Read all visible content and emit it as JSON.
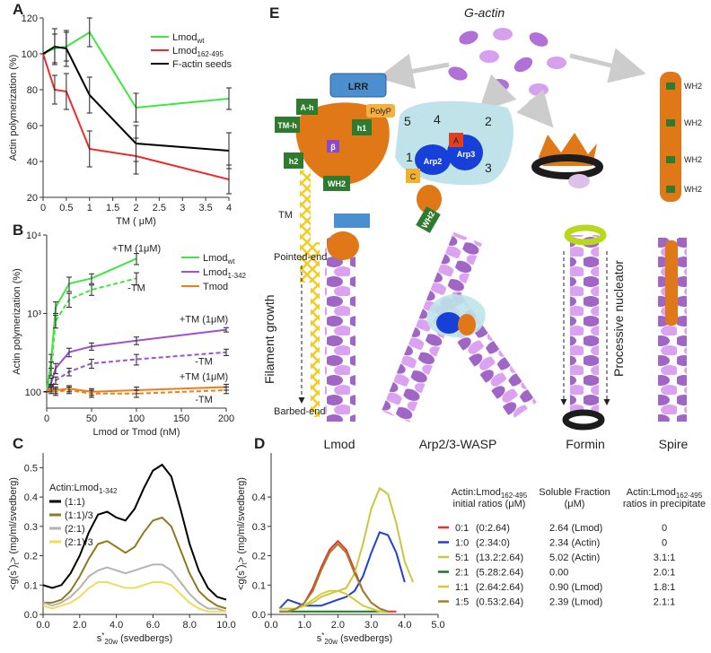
{
  "chart_data": [
    {
      "type": "line",
      "panel": "A",
      "xlabel": "TM ( μM)",
      "ylabel": "Actin polymerization (%)",
      "x": [
        0,
        0.25,
        0.5,
        1,
        2,
        4
      ],
      "xlim": [
        0,
        4
      ],
      "ylim": [
        20,
        120
      ],
      "xticks": [
        0,
        0.5,
        1,
        1.5,
        2,
        2.5,
        3,
        3.5,
        4
      ],
      "yticks": [
        20,
        40,
        60,
        80,
        100,
        120
      ],
      "series": [
        {
          "name": [
            "Lmod",
            {
              "sub": "wt"
            }
          ],
          "color": "#3ee63e",
          "values": [
            100,
            103,
            104,
            112,
            70,
            75
          ],
          "errors": [
            0,
            8,
            8,
            8,
            8,
            6
          ]
        },
        {
          "name": [
            "Lmod",
            {
              "sub": "162-495"
            }
          ],
          "color": "#ee2b2b",
          "values": [
            100,
            80,
            79,
            47,
            43,
            30
          ],
          "errors": [
            0,
            8,
            10,
            10,
            10,
            8
          ]
        },
        {
          "name": "F-actin seeds",
          "color": "#000000",
          "values": [
            100,
            104,
            103,
            77,
            50,
            46
          ],
          "errors": [
            0,
            10,
            10,
            10,
            10,
            10
          ]
        }
      ]
    },
    {
      "type": "line",
      "panel": "B",
      "xlabel": "Lmod or Tmod (nM)",
      "ylabel": "Actin polymerization (%)",
      "log_y": true,
      "x": [
        0,
        5,
        10,
        25,
        50,
        100,
        200
      ],
      "xlim": [
        0,
        200
      ],
      "ylim": [
        62,
        10000
      ],
      "xticks": [
        0,
        50,
        100,
        150,
        200
      ],
      "yticks": [
        100,
        {
          "value": 1000,
          "label": "10³"
        },
        {
          "value": 10000,
          "label": "10⁴"
        }
      ],
      "legend": [
        {
          "name": [
            "Lmod",
            {
              "sub": "wt"
            }
          ],
          "color": "#3ee63e"
        },
        {
          "name": [
            "Lmod",
            {
              "sub": "1-342"
            }
          ],
          "color": "#a050d0"
        },
        {
          "name": "Tmod",
          "color": "#f07d1a"
        }
      ],
      "series": [
        {
          "name": "+TM (1μM)",
          "color": "#3ee63e",
          "dashed": false,
          "values": [
            100,
            250,
            1200,
            2400,
            2800,
            5000,
            null
          ],
          "errors": [
            0,
            50,
            200,
            500,
            400,
            800,
            null
          ]
        },
        {
          "name": "-TM",
          "color": "#3ee63e",
          "dashed": true,
          "values": [
            100,
            200,
            800,
            1500,
            2000,
            2800,
            null
          ],
          "errors": [
            0,
            40,
            150,
            300,
            300,
            500,
            null
          ]
        },
        {
          "name": "+TM (1μM)",
          "color": "#a050d0",
          "dashed": false,
          "values": [
            100,
            130,
            200,
            320,
            380,
            450,
            620
          ],
          "errors": [
            0,
            20,
            30,
            40,
            40,
            50,
            40
          ]
        },
        {
          "name": "-TM",
          "color": "#a050d0",
          "dashed": true,
          "values": [
            100,
            110,
            140,
            180,
            230,
            260,
            320
          ],
          "errors": [
            0,
            10,
            15,
            20,
            30,
            40,
            30
          ]
        },
        {
          "name": "+TM (1μM)",
          "color": "#f07d1a",
          "dashed": false,
          "values": [
            100,
            115,
            105,
            110,
            100,
            105,
            115
          ],
          "errors": [
            0,
            10,
            10,
            10,
            10,
            10,
            10
          ]
        },
        {
          "name": "-TM",
          "color": "#f07d1a",
          "dashed": true,
          "values": [
            100,
            105,
            100,
            105,
            95,
            95,
            105
          ],
          "errors": [
            0,
            10,
            10,
            10,
            10,
            10,
            10
          ]
        }
      ]
    },
    {
      "type": "line",
      "panel": "C",
      "xlabel": [
        "s",
        {
          "sup": "*"
        },
        {
          "sub": "20w"
        },
        " (svedbergs)"
      ],
      "ylabel": [
        "<g(s",
        {
          "sup": "*"
        },
        ")",
        {
          "sub": "t"
        },
        "> (mg/ml/svedberg)"
      ],
      "legend_title": [
        "Actin:Lmod",
        {
          "sub": "1-342"
        }
      ],
      "x": [
        0,
        0.5,
        1,
        1.5,
        2,
        2.5,
        3,
        3.5,
        4,
        4.5,
        5,
        5.5,
        6,
        6.5,
        7,
        7.5,
        8,
        8.5,
        9,
        9.5,
        10
      ],
      "xlim": [
        0,
        10
      ],
      "ylim": [
        0,
        0.55
      ],
      "xticks": [
        {
          "value": 0,
          "label": "0.0"
        },
        {
          "value": 2,
          "label": "2.0"
        },
        {
          "value": 4,
          "label": "4.0"
        },
        {
          "value": 6,
          "label": "6.0"
        },
        {
          "value": 8,
          "label": "8.0"
        },
        {
          "value": 10,
          "label": "10.0"
        }
      ],
      "yticks": [
        {
          "value": 0,
          "label": "0.0"
        },
        0.1,
        0.2,
        0.3,
        0.4,
        0.5
      ],
      "series": [
        {
          "name": "(1:1)",
          "color": "#000000",
          "values": [
            0.1,
            0.09,
            0.1,
            0.14,
            0.2,
            0.28,
            0.34,
            0.35,
            0.33,
            0.32,
            0.36,
            0.43,
            0.49,
            0.51,
            0.47,
            0.36,
            0.24,
            0.15,
            0.09,
            0.06,
            0.05
          ]
        },
        {
          "name": "(1:1)/3",
          "color": "#8c7a1e",
          "values": [
            0.04,
            0.04,
            0.05,
            0.08,
            0.13,
            0.19,
            0.24,
            0.25,
            0.23,
            0.21,
            0.23,
            0.28,
            0.32,
            0.33,
            0.3,
            0.22,
            0.14,
            0.08,
            0.05,
            0.03,
            0.02
          ]
        },
        {
          "name": "(2:1)",
          "color": "#b3b3b3",
          "values": [
            0.04,
            0.03,
            0.04,
            0.06,
            0.09,
            0.13,
            0.15,
            0.16,
            0.15,
            0.14,
            0.15,
            0.16,
            0.17,
            0.17,
            0.15,
            0.11,
            0.07,
            0.04,
            0.02,
            0.02,
            0.01
          ]
        },
        {
          "name": "(2:1)/3",
          "color": "#f0dc5a",
          "values": [
            0.03,
            0.02,
            0.03,
            0.04,
            0.06,
            0.09,
            0.11,
            0.11,
            0.1,
            0.09,
            0.09,
            0.1,
            0.11,
            0.11,
            0.1,
            0.07,
            0.04,
            0.02,
            0.01,
            0.01,
            0.01
          ]
        }
      ]
    },
    {
      "type": "line",
      "panel": "D",
      "xlabel": [
        "s",
        {
          "sup": "*"
        },
        {
          "sub": "20w"
        },
        " (svedbergs)"
      ],
      "ylabel": [
        "<g(s",
        {
          "sup": "*"
        },
        ")",
        {
          "sub": "t"
        },
        "> (mg/ml/svedberg)"
      ],
      "x": [
        0.25,
        0.5,
        0.75,
        1.0,
        1.25,
        1.5,
        1.75,
        2.0,
        2.25,
        2.5,
        2.75,
        3.0,
        3.25,
        3.5,
        3.75,
        4.0,
        4.25
      ],
      "xlim": [
        0,
        5
      ],
      "ylim": [
        0,
        0.55
      ],
      "xticks": [
        {
          "value": 0,
          "label": "0.0"
        },
        {
          "value": 1,
          "label": "1.0"
        },
        {
          "value": 2,
          "label": "2.0"
        },
        {
          "value": 3,
          "label": "3.0"
        },
        {
          "value": 4,
          "label": "4.0"
        },
        {
          "value": 5,
          "label": "5.0"
        }
      ],
      "yticks": [
        {
          "value": 0,
          "label": "0.0"
        },
        0.1,
        0.2,
        0.3,
        0.4
      ],
      "series": [
        {
          "name": "0:1",
          "color": "#e8322c",
          "values": [
            0.01,
            0.01,
            0.02,
            0.04,
            0.09,
            0.16,
            0.22,
            0.25,
            0.22,
            0.15,
            0.08,
            0.04,
            0.02,
            0.01,
            0.01,
            null,
            null
          ]
        },
        {
          "name": "1:0",
          "color": "#2040d0",
          "values": [
            0.02,
            0.05,
            0.04,
            0.03,
            0.03,
            0.03,
            0.04,
            0.05,
            0.06,
            0.08,
            0.13,
            0.21,
            0.28,
            0.27,
            0.21,
            0.11,
            null
          ]
        },
        {
          "name": "5:1",
          "color": "#c8c840",
          "values": [
            0.02,
            0.02,
            0.02,
            0.03,
            0.04,
            0.06,
            0.07,
            0.08,
            0.09,
            0.14,
            0.24,
            0.36,
            0.43,
            0.41,
            0.31,
            0.18,
            0.11
          ]
        },
        {
          "name": "2:1",
          "color": "#1a7a1a",
          "values": [
            0.01,
            0.01,
            0.01,
            0.01,
            0.01,
            0.01,
            0.01,
            0.01,
            0.01,
            0.01,
            0.01,
            0.01,
            0.01,
            0.01,
            null,
            null,
            null
          ]
        },
        {
          "name": "1:1",
          "color": "#d8c838",
          "values": [
            0.01,
            0.01,
            0.02,
            0.03,
            0.05,
            0.07,
            0.08,
            0.08,
            0.07,
            0.05,
            0.03,
            0.02,
            0.01,
            0.01,
            null,
            null,
            null
          ]
        },
        {
          "name": "1:5",
          "color": "#a0802a",
          "values": [
            0.01,
            0.01,
            0.02,
            0.04,
            0.08,
            0.15,
            0.21,
            0.24,
            0.21,
            0.14,
            0.08,
            0.04,
            0.02,
            0.01,
            null,
            null,
            null
          ]
        }
      ],
      "table": {
        "columns": [
          [
            [
              "Actin:Lmod",
              {
                "sub": "162-495"
              }
            ],
            "initial ratios  (μM)"
          ],
          [
            "Soluble Fraction",
            "(μM)"
          ],
          [
            [
              "Actin:Lmod",
              {
                "sub": "162-495"
              }
            ],
            "ratios in precipitate"
          ]
        ],
        "rows": [
          [
            "(0:2.64)",
            "2.64 (Lmod)",
            "0"
          ],
          [
            "(2.34:0)",
            "2.34 (Actin)",
            "0"
          ],
          [
            "(13.2:2.64)",
            "5.02 (Actin)",
            "3.1:1"
          ],
          [
            "(5.28:2.64)",
            "0.00",
            "2.0:1"
          ],
          [
            "(2.64:2.64)",
            "0.90 (Lmod)",
            "1.8:1"
          ],
          [
            "(0.53:2.64)",
            "2.39 (Lmod)",
            "2.1:1"
          ]
        ]
      }
    }
  ],
  "diagram": {
    "label": "E",
    "g_actin": "G-actin",
    "lmod": {
      "lrr": "LRR",
      "ah": "A-h",
      "polyp": "PolyP",
      "h1": "h1",
      "tmh": "TM-h",
      "beta": "β",
      "h2": "h2",
      "wh2": "WH2",
      "tm": "TM"
    },
    "arp": {
      "s5": "5",
      "s4": "4",
      "s2": "2",
      "s1": "1",
      "s3": "3",
      "a": "A",
      "arp2": "Arp2",
      "arp3": "Arp3",
      "c": "C",
      "wh2": "WH2"
    },
    "spire_wh2": [
      "WH2",
      "WH2",
      "WH2",
      "WH2"
    ],
    "pointed_end": "Pointed-end",
    "filament_growth": "Filament growth",
    "barbed_end": "Barbed-end",
    "processive": "Processive nucleator",
    "names": [
      "Lmod",
      "Arp2/3-WASP",
      "Formin",
      "Spire"
    ]
  }
}
